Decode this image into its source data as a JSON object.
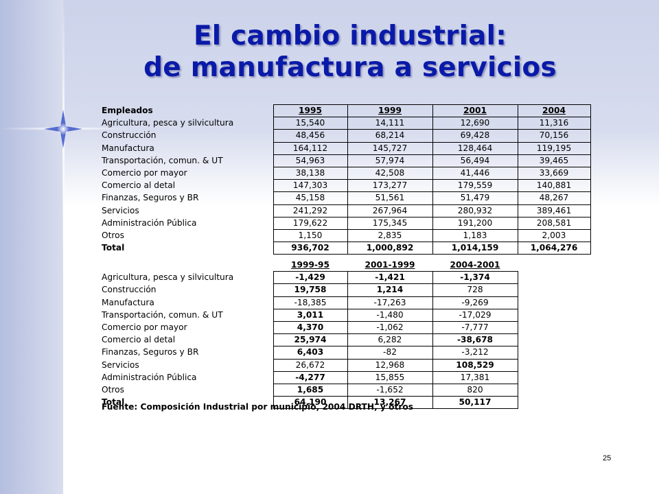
{
  "title": {
    "line1": "El cambio industrial:",
    "line2": "de manufactura a servicios"
  },
  "table1": {
    "header_label": "Empleados",
    "years": [
      "1995",
      "1999",
      "2001",
      "2004"
    ],
    "rows": [
      {
        "label": "Agricultura, pesca y silvicultura",
        "values": [
          "15,540",
          "14,111",
          "12,690",
          "11,316"
        ]
      },
      {
        "label": "Construcción",
        "values": [
          "48,456",
          "68,214",
          "69,428",
          "70,156"
        ]
      },
      {
        "label": "Manufactura",
        "values": [
          "164,112",
          "145,727",
          "128,464",
          "119,195"
        ]
      },
      {
        "label": "Transportación, comun. & UT",
        "values": [
          "54,963",
          "57,974",
          "56,494",
          "39,465"
        ]
      },
      {
        "label": "Comercio por mayor",
        "values": [
          "38,138",
          "42,508",
          "41,446",
          "33,669"
        ]
      },
      {
        "label": "Comercio al detal",
        "values": [
          "147,303",
          "173,277",
          "179,559",
          "140,881"
        ]
      },
      {
        "label": "Finanzas, Seguros y BR",
        "values": [
          "45,158",
          "51,561",
          "51,479",
          "48,267"
        ]
      },
      {
        "label": "Servicios",
        "values": [
          "241,292",
          "267,964",
          "280,932",
          "389,461"
        ]
      },
      {
        "label": "Administración Pública",
        "values": [
          "179,622",
          "175,345",
          "191,200",
          "208,581"
        ]
      },
      {
        "label": "Otros",
        "values": [
          "1,150",
          "2,835",
          "1,183",
          "2,003"
        ]
      }
    ],
    "total": {
      "label": "Total",
      "values": [
        "936,702",
        "1,000,892",
        "1,014,159",
        "1,064,276"
      ]
    }
  },
  "table2": {
    "periods": [
      "1999-95",
      "2001-1999",
      "2004-2001"
    ],
    "rows": [
      {
        "label": "Agricultura, pesca y silvicultura",
        "values": [
          "-1,429",
          "-1,421",
          "-1,374"
        ],
        "bold": [
          true,
          true,
          true
        ]
      },
      {
        "label": "Construcción",
        "values": [
          "19,758",
          "1,214",
          "728"
        ],
        "bold": [
          true,
          true,
          false
        ]
      },
      {
        "label": "Manufactura",
        "values": [
          "-18,385",
          "-17,263",
          "-9,269"
        ],
        "bold": [
          false,
          false,
          false
        ]
      },
      {
        "label": "Transportación, comun. & UT",
        "values": [
          "3,011",
          "-1,480",
          "-17,029"
        ],
        "bold": [
          true,
          false,
          false
        ]
      },
      {
        "label": "Comercio por mayor",
        "values": [
          "4,370",
          "-1,062",
          "-7,777"
        ],
        "bold": [
          true,
          false,
          false
        ]
      },
      {
        "label": "Comercio al detal",
        "values": [
          "25,974",
          "6,282",
          "-38,678"
        ],
        "bold": [
          true,
          false,
          true
        ]
      },
      {
        "label": "Finanzas, Seguros y BR",
        "values": [
          "6,403",
          "-82",
          "-3,212"
        ],
        "bold": [
          true,
          false,
          false
        ]
      },
      {
        "label": "Servicios",
        "values": [
          "26,672",
          "12,968",
          "108,529"
        ],
        "bold": [
          false,
          false,
          true
        ]
      },
      {
        "label": "Administración Pública",
        "values": [
          "-4,277",
          "15,855",
          "17,381"
        ],
        "bold": [
          true,
          false,
          false
        ]
      },
      {
        "label": "Otros",
        "values": [
          "1,685",
          "-1,652",
          "820"
        ],
        "bold": [
          true,
          false,
          false
        ]
      }
    ],
    "total": {
      "label": "Total",
      "values": [
        "64,190",
        "13,267",
        "50,117"
      ]
    }
  },
  "source": "Fuente: Composición Industrial por municipio, 2004 DRTH, y otros",
  "slide_number": "25"
}
